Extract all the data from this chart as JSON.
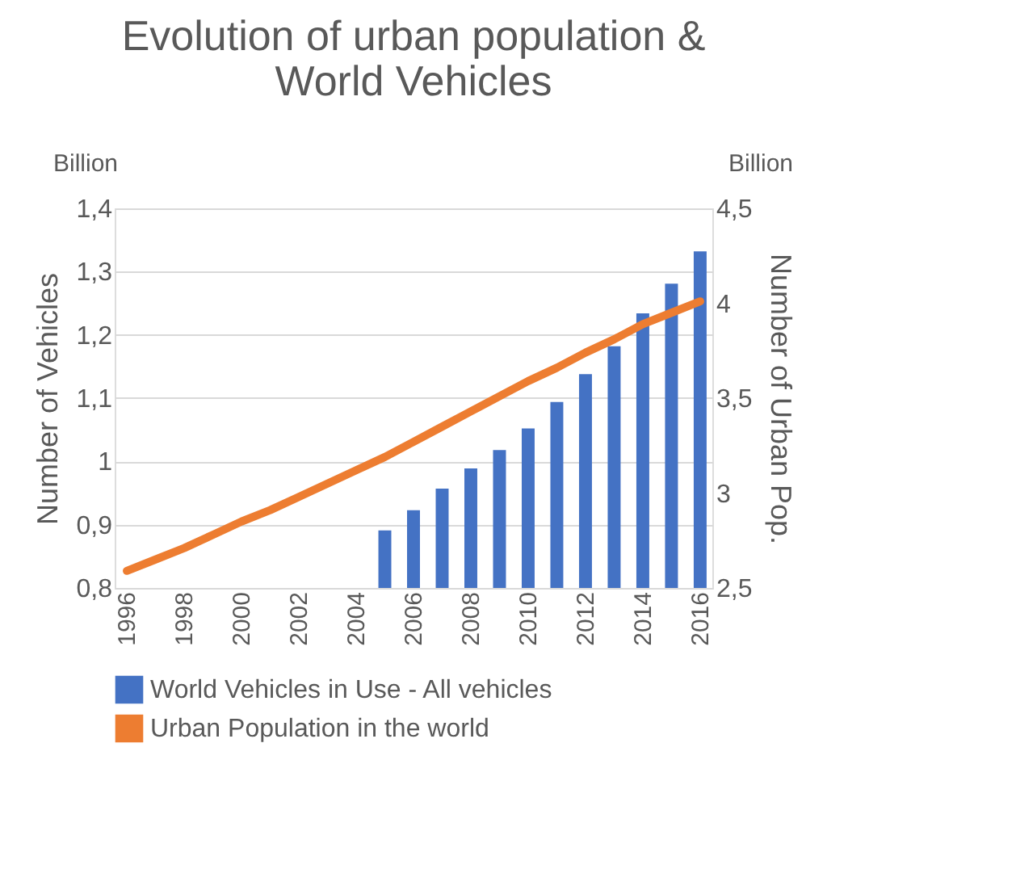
{
  "chart_data": {
    "type": "bar",
    "title": [
      "Evolution of urban population &",
      "World Vehicles"
    ],
    "categories": [
      "1996",
      null,
      "1998",
      null,
      "2000",
      null,
      "2002",
      null,
      "2004",
      null,
      "2006",
      null,
      "2008",
      null,
      "2010",
      null,
      "2012",
      null,
      "2014",
      null,
      "2016"
    ],
    "series": [
      {
        "name": "World Vehicles in Use - All vehicles",
        "color": "#4472c4",
        "values": [
          null,
          null,
          null,
          null,
          null,
          null,
          null,
          null,
          null,
          0.891,
          0.923,
          0.957,
          0.989,
          1.018,
          1.052,
          1.094,
          1.138,
          1.182,
          1.234,
          1.281,
          1.332
        ]
      },
      {
        "name": "Urban Population in the world",
        "type": "line",
        "axis": "y2",
        "color": "#ed7d31",
        "values": [
          2.59,
          2.65,
          2.71,
          2.78,
          2.85,
          2.91,
          2.98,
          3.05,
          3.12,
          3.19,
          3.27,
          3.35,
          3.43,
          3.51,
          3.59,
          3.66,
          3.74,
          3.81,
          3.89,
          3.95,
          4.01
        ]
      }
    ],
    "ylabel": "Number of Vehicles",
    "y2label": "Number of Urban Pop.",
    "ylim": [
      0.8,
      1.4
    ],
    "yticks": [
      {
        "value": 0.8,
        "label": "0,8"
      },
      {
        "value": 0.9,
        "label": "0,9"
      },
      1,
      {
        "value": 1.1,
        "label": "1,1"
      },
      {
        "value": 1.2,
        "label": "1,2"
      },
      {
        "value": 1.3,
        "label": "1,3"
      },
      {
        "value": 1.4,
        "label": "1,4"
      }
    ],
    "y2lim": [
      2.5,
      4.5
    ],
    "y2ticks": [
      {
        "value": 2.5,
        "label": "2,5"
      },
      3,
      {
        "value": 3.5,
        "label": "3,5"
      },
      4,
      {
        "value": 4.5,
        "label": "4,5"
      }
    ],
    "annotations": [
      "Billion",
      "Billion"
    ],
    "grid": "y",
    "legend": "bottom"
  }
}
